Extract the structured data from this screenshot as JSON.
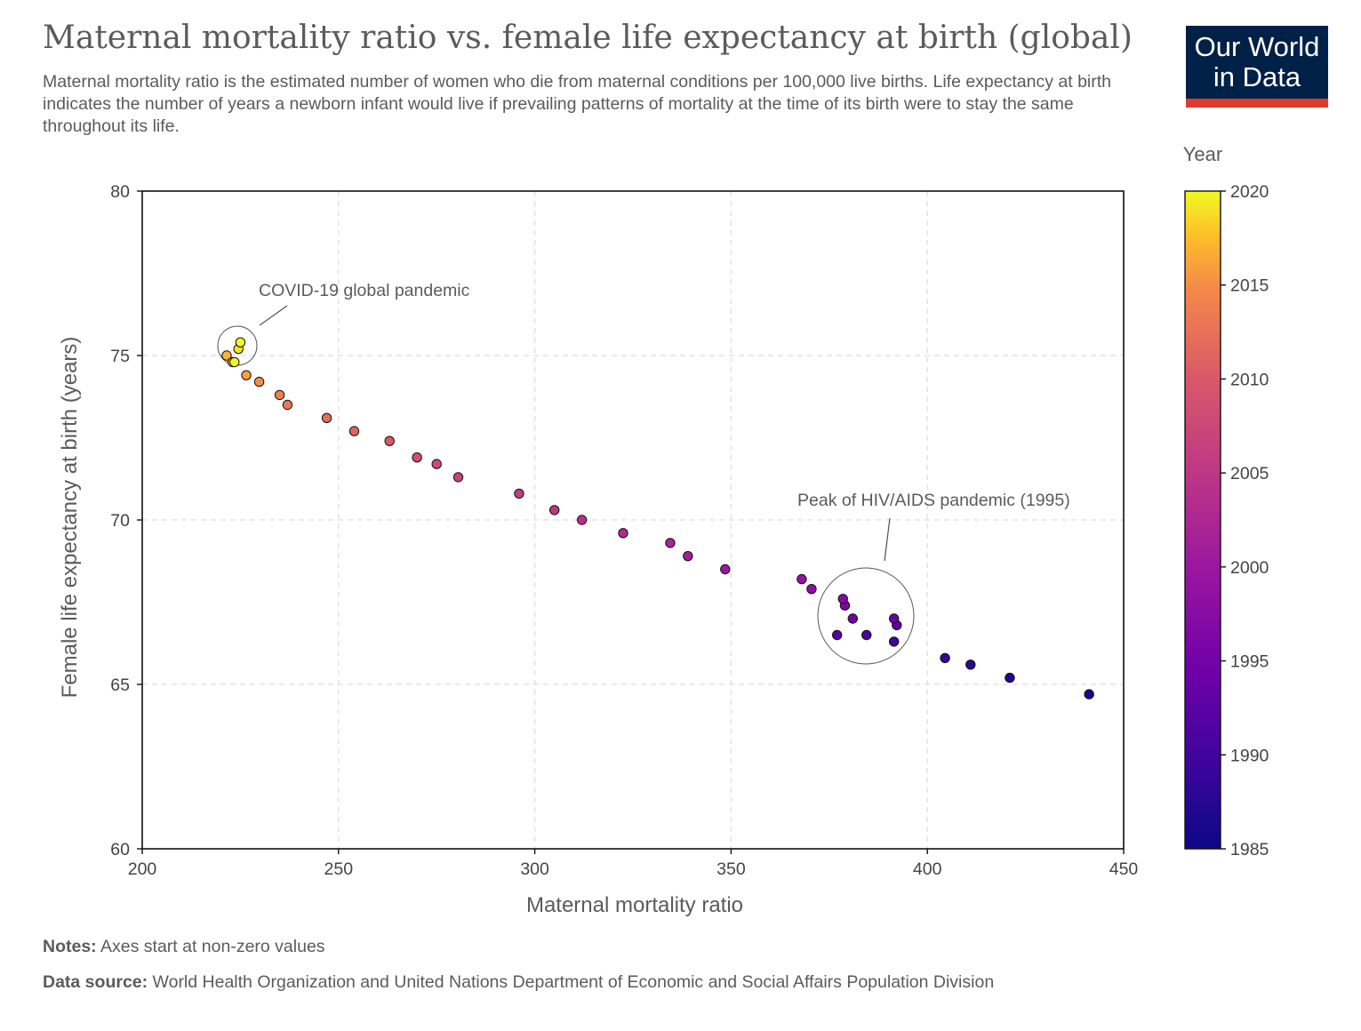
{
  "header": {
    "title": "Maternal mortality ratio vs. female life expectancy at birth (global)",
    "subtitle": "Maternal mortality ratio is the estimated number of women who die from maternal conditions per 100,000 live births. Life expectancy at birth indicates the number of years a newborn infant would live if prevailing patterns of mortality at the time of its birth were to stay the same throughout its life."
  },
  "logo": {
    "line1": "Our World",
    "line2": "in Data",
    "bg_color": "#002147",
    "bar_color": "#dd3b2f"
  },
  "footer": {
    "notes_label": "Notes:",
    "notes_text": " Axes start at non-zero values",
    "source_label": "Data source:",
    "source_text": " World Health Organization and United Nations Department of Economic and Social Affairs Population Division"
  },
  "chart_data": {
    "type": "scatter",
    "xlabel": "Maternal mortality ratio",
    "ylabel": "Female life expectancy at birth (years)",
    "xlim": [
      200,
      450
    ],
    "ylim": [
      60,
      80
    ],
    "xticks": [
      200,
      250,
      300,
      350,
      400,
      450
    ],
    "yticks": [
      60,
      65,
      70,
      75,
      80
    ],
    "grid": true,
    "colorbar": {
      "title": "Year",
      "range": [
        1985,
        2020
      ],
      "ticks": [
        1985,
        1990,
        1995,
        2000,
        2005,
        2010,
        2015,
        2020
      ],
      "colormap": "plasma"
    },
    "annotations": [
      {
        "text": "COVID-19 global pandemic"
      },
      {
        "text": "Peak of HIV/AIDS pandemic (1995)"
      }
    ],
    "points": [
      {
        "x": 441.2,
        "y": 64.7,
        "year": 1986
      },
      {
        "x": 421.0,
        "y": 65.2,
        "year": 1987
      },
      {
        "x": 411.0,
        "y": 65.6,
        "year": 1988
      },
      {
        "x": 404.5,
        "y": 65.8,
        "year": 1989
      },
      {
        "x": 391.5,
        "y": 66.3,
        "year": 1990
      },
      {
        "x": 384.5,
        "y": 66.5,
        "year": 1991
      },
      {
        "x": 377.0,
        "y": 66.5,
        "year": 1992
      },
      {
        "x": 392.2,
        "y": 66.8,
        "year": 1993
      },
      {
        "x": 391.5,
        "y": 67.0,
        "year": 1994
      },
      {
        "x": 381.0,
        "y": 67.0,
        "year": 1995
      },
      {
        "x": 379.0,
        "y": 67.4,
        "year": 1996
      },
      {
        "x": 378.5,
        "y": 67.6,
        "year": 1997
      },
      {
        "x": 370.5,
        "y": 67.9,
        "year": 1998
      },
      {
        "x": 368.0,
        "y": 68.2,
        "year": 1999
      },
      {
        "x": 348.5,
        "y": 68.5,
        "year": 2000
      },
      {
        "x": 339.0,
        "y": 68.9,
        "year": 2001
      },
      {
        "x": 334.5,
        "y": 69.3,
        "year": 2002
      },
      {
        "x": 322.5,
        "y": 69.6,
        "year": 2003
      },
      {
        "x": 312.0,
        "y": 70.0,
        "year": 2004
      },
      {
        "x": 305.0,
        "y": 70.3,
        "year": 2005
      },
      {
        "x": 296.0,
        "y": 70.8,
        "year": 2006
      },
      {
        "x": 280.5,
        "y": 71.3,
        "year": 2007
      },
      {
        "x": 275.0,
        "y": 71.7,
        "year": 2008
      },
      {
        "x": 270.0,
        "y": 71.9,
        "year": 2009
      },
      {
        "x": 263.0,
        "y": 72.4,
        "year": 2010
      },
      {
        "x": 254.0,
        "y": 72.7,
        "year": 2011
      },
      {
        "x": 247.0,
        "y": 73.1,
        "year": 2012
      },
      {
        "x": 237.0,
        "y": 73.5,
        "year": 2013
      },
      {
        "x": 235.0,
        "y": 73.8,
        "year": 2014
      },
      {
        "x": 229.8,
        "y": 74.2,
        "year": 2015
      },
      {
        "x": 226.5,
        "y": 74.4,
        "year": 2016
      },
      {
        "x": 221.5,
        "y": 75.0,
        "year": 2017
      },
      {
        "x": 223.0,
        "y": 74.8,
        "year": 2018
      },
      {
        "x": 224.5,
        "y": 75.2,
        "year": 2019
      },
      {
        "x": 223.5,
        "y": 74.8,
        "year": 2020
      },
      {
        "x": 225.0,
        "y": 75.4,
        "year": 2021
      }
    ]
  }
}
